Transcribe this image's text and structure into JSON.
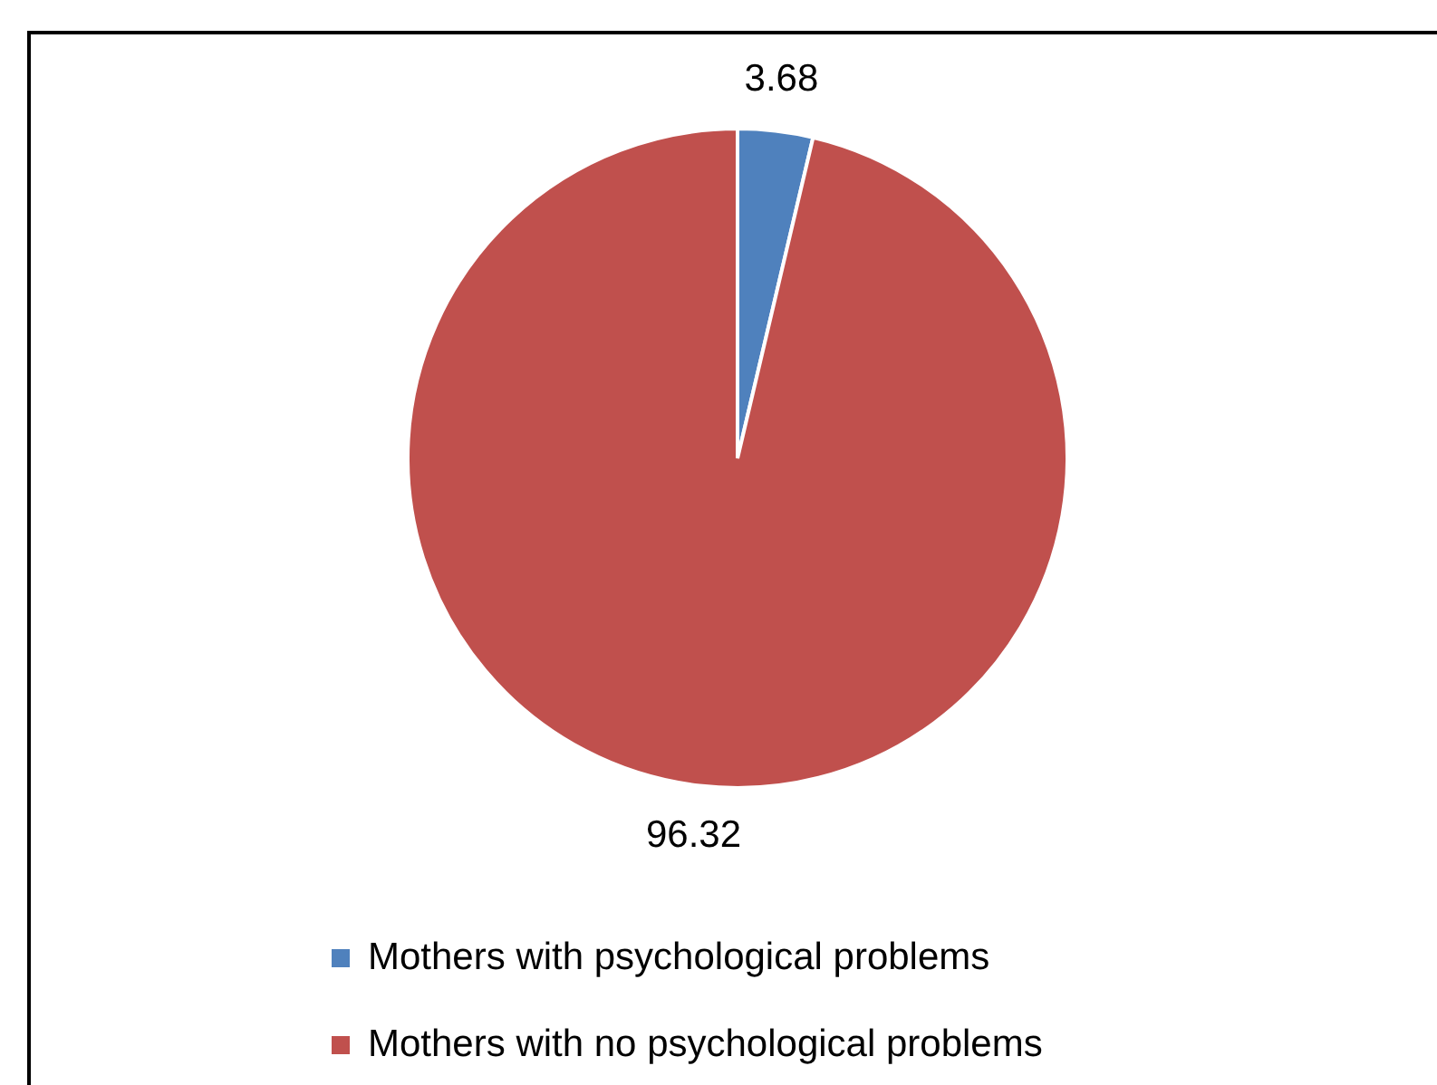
{
  "chart_data": {
    "type": "pie",
    "categories": [
      "Mothers with psychological problems",
      "Mothers with no psychological problems"
    ],
    "values": [
      3.68,
      96.32
    ],
    "colors": [
      "#4f81bd",
      "#c0504d"
    ],
    "data_labels": true,
    "legend": "bottom"
  }
}
